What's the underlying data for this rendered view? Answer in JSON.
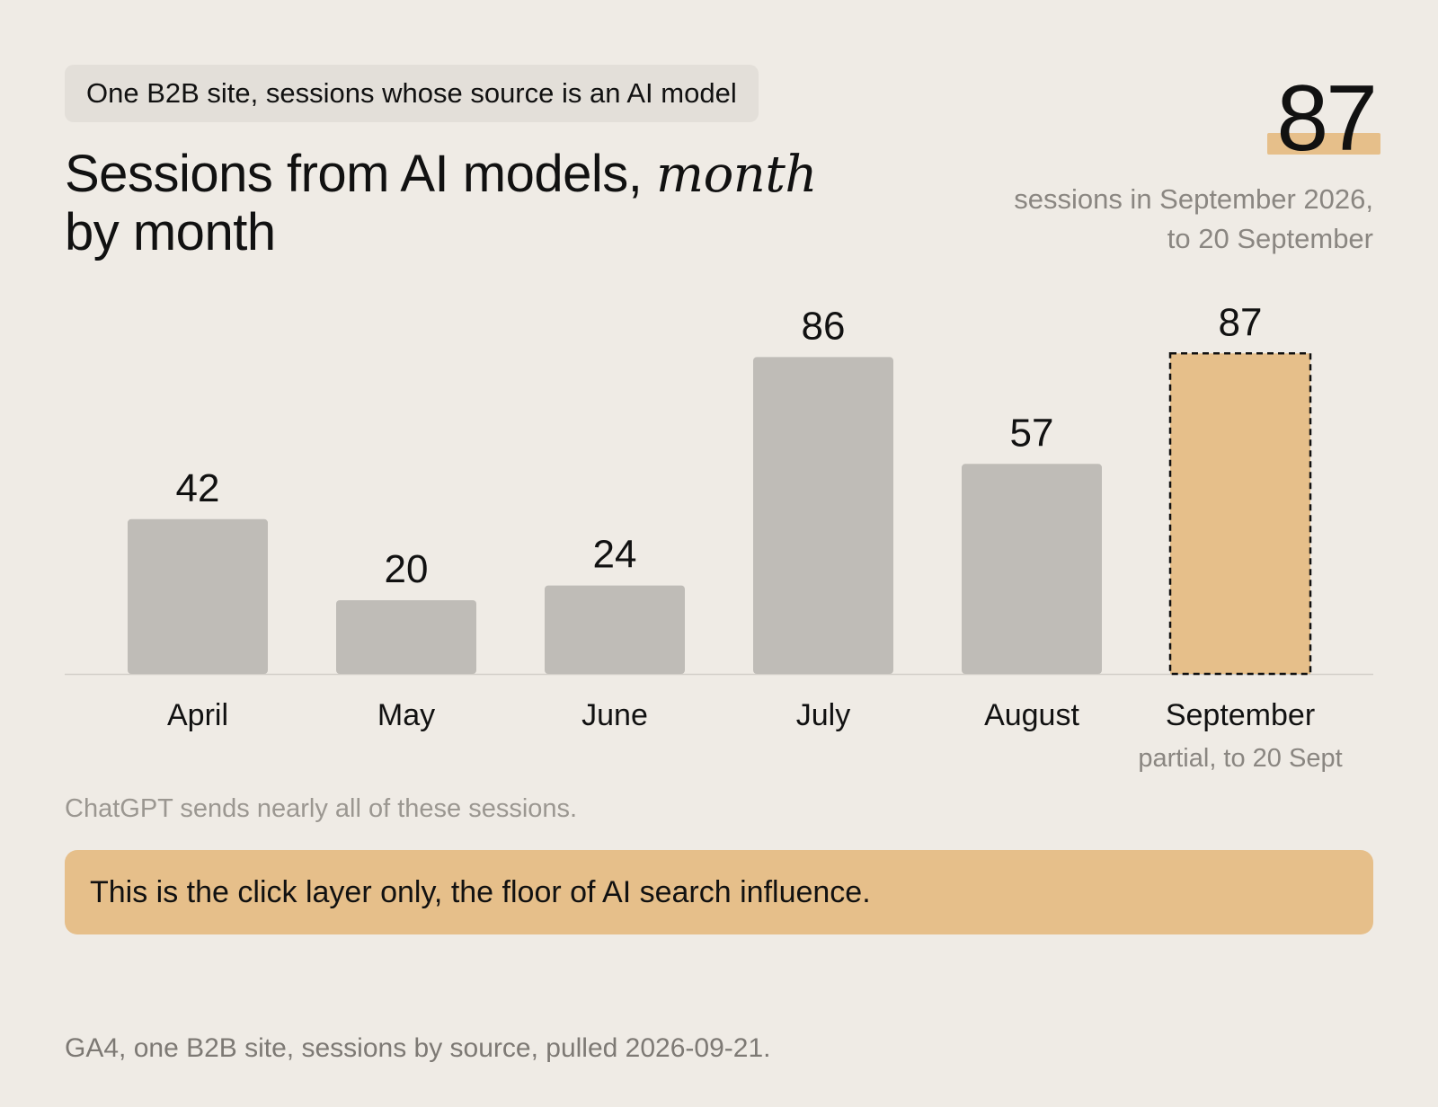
{
  "header": {
    "tag": "One B2B site, sessions whose source is an AI model",
    "title_main": "Sessions from AI models, ",
    "title_emphasis": "month",
    "title_tail": "by month"
  },
  "kpi": {
    "value": "87",
    "caption_line1": "sessions in September 2026,",
    "caption_line2": "to 20 September"
  },
  "chart_data": {
    "type": "bar",
    "categories": [
      "April",
      "May",
      "June",
      "July",
      "August",
      "September"
    ],
    "values": [
      42,
      20,
      24,
      86,
      57,
      87
    ],
    "category_notes": [
      "",
      "",
      "",
      "",
      "",
      "partial, to 20 Sept"
    ],
    "highlight_index": 5,
    "ylim": [
      0,
      100
    ],
    "grid": false,
    "colors": {
      "bar": "#bfbcb7",
      "highlight": "#e6bf8a",
      "highlight_border": "#111111",
      "baseline": "#d2cec8"
    }
  },
  "note": "ChatGPT sends nearly all of these sessions.",
  "callout": "This is the click layer only, the floor of AI search influence.",
  "footer": "GA4, one B2B site, sessions by source, pulled 2026-09-21."
}
